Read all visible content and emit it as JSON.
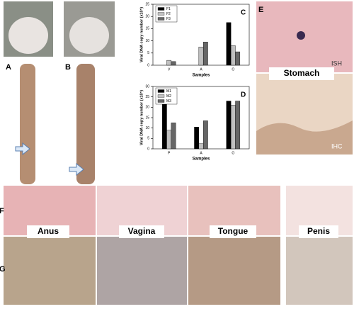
{
  "chart_data": [
    {
      "type": "bar",
      "panel_label": "C",
      "ylabel": "Viral DNA copy number (x10⁵)",
      "xlabel": "Samples",
      "categories": [
        "V",
        "A",
        "O"
      ],
      "series": [
        {
          "name": "F1",
          "color": "#000000",
          "values": [
            0,
            0,
            17.5
          ]
        },
        {
          "name": "F2",
          "color": "#c0c0c0",
          "values": [
            2,
            7.5,
            8
          ]
        },
        {
          "name": "F3",
          "color": "#666666",
          "values": [
            1.5,
            9.5,
            5.5
          ]
        }
      ],
      "ylim": [
        0,
        25
      ],
      "yticks": [
        0,
        5,
        10,
        15,
        20,
        25
      ],
      "legend": "upper left"
    },
    {
      "type": "bar",
      "panel_label": "D",
      "ylabel": "Viral DNA copy number (x10⁵)",
      "xlabel": "Samples",
      "categories": [
        "P",
        "A",
        "O"
      ],
      "series": [
        {
          "name": "M1",
          "color": "#000000",
          "values": [
            24,
            10.5,
            23
          ]
        },
        {
          "name": "M2",
          "color": "#c0c0c0",
          "values": [
            9,
            2.5,
            21
          ]
        },
        {
          "name": "M3",
          "color": "#666666",
          "values": [
            12.5,
            13.5,
            23
          ]
        }
      ],
      "ylim": [
        0,
        30
      ],
      "yticks": [
        0,
        5,
        10,
        15,
        20,
        25,
        30
      ],
      "legend": "upper left"
    }
  ],
  "panels": {
    "a": "A",
    "b": "B",
    "e": "E",
    "f": "F",
    "g": "G"
  },
  "labels": {
    "stomach": "Stomach",
    "ish": "ISH",
    "ihc": "IHC",
    "anus": "Anus",
    "vagina": "Vagina",
    "tongue": "Tongue",
    "penis": "Penis"
  }
}
